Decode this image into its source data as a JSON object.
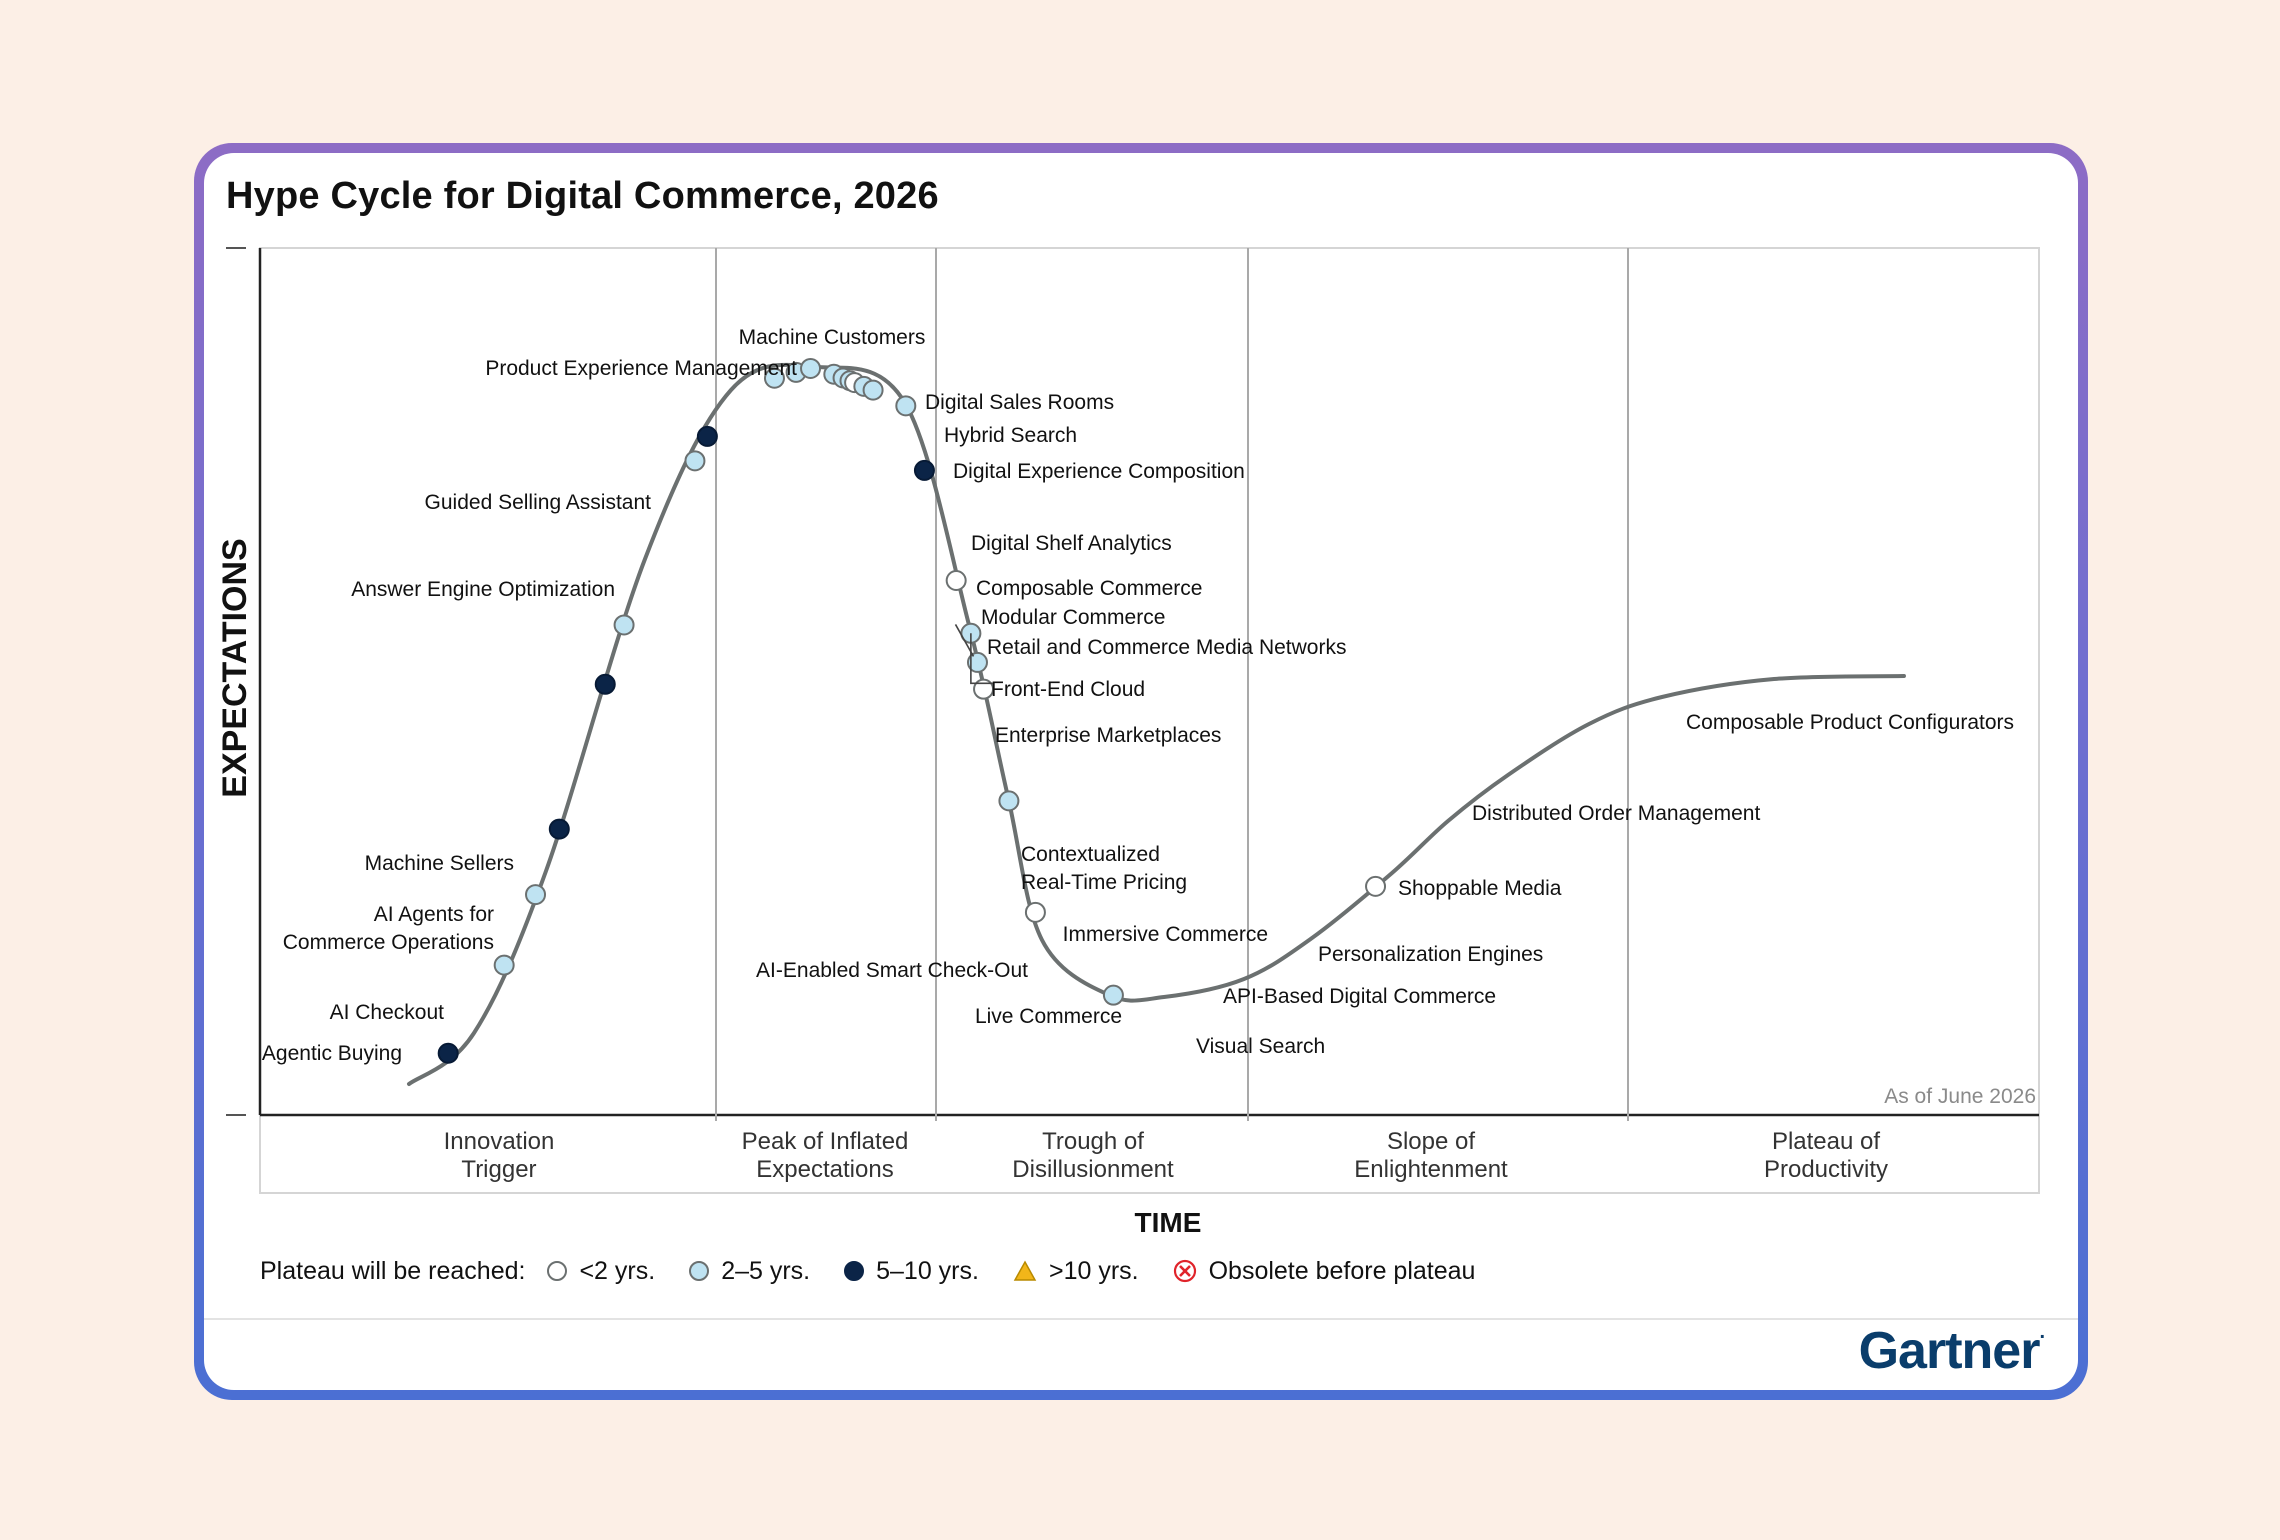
{
  "title": "Hype Cycle for Digital Commerce, 2026",
  "chart_data": {
    "type": "hype-cycle",
    "title": "Hype Cycle for Digital Commerce, 2026",
    "xlabel": "TIME",
    "ylabel": "EXPECTATIONS",
    "as_of": "As of June 2026",
    "phases": [
      "Innovation Trigger",
      "Peak of Inflated Expectations",
      "Trough of Disillusionment",
      "Slope of Enlightenment",
      "Plateau of Productivity"
    ],
    "colors": {
      "lt2": "#ffffff",
      "2to5": "#bfe3f2",
      "5to10": "#0b2447",
      "gt10": "#f2b619",
      "obsolete": "#e0242b",
      "curve": "#6b7070",
      "grid": "#a9a9a9"
    },
    "points": [
      {
        "name": "Agentic Buying",
        "t": 0.02,
        "cat": "5to10"
      },
      {
        "name": "AI Checkout",
        "t": 0.063,
        "cat": "2to5"
      },
      {
        "name": "AI Agents for Commerce Operations",
        "t": 0.094,
        "cat": "2to5"
      },
      {
        "name": "Machine Sellers",
        "t": 0.122,
        "cat": "5to10"
      },
      {
        "name": "Answer Engine Optimization",
        "t": 0.183,
        "cat": "5to10"
      },
      {
        "name": "Guided Selling Assistant",
        "t": 0.208,
        "cat": "2to5"
      },
      {
        "name": "Product Experience Management",
        "t": 0.28,
        "cat": "2to5"
      },
      {
        "name": "Machine Customers",
        "t": 0.291,
        "cat": "5to10"
      },
      {
        "name": "Digital Sales Rooms",
        "t": 0.33,
        "cat": "2to5"
      },
      {
        "name": "Hybrid Search",
        "t": 0.339,
        "cat": "2to5"
      },
      {
        "name": "Digital Experience Composition",
        "t": 0.345,
        "cat": "2to5"
      },
      {
        "name": "Digital Shelf Analytics",
        "t": 0.355,
        "cat": "2to5"
      },
      {
        "name": "Composable Commerce",
        "t": 0.359,
        "cat": "2to5"
      },
      {
        "name": "Modular Commerce",
        "t": 0.362,
        "cat": "2to5"
      },
      {
        "name": "Retail and Commerce Media Networks",
        "t": 0.364,
        "cat": "lt2"
      },
      {
        "name": "Front-End Cloud",
        "t": 0.368,
        "cat": "2to5"
      },
      {
        "name": "Enterprise Marketplaces",
        "t": 0.372,
        "cat": "2to5"
      },
      {
        "name": "Contextualized Real-Time Pricing",
        "t": 0.387,
        "cat": "2to5"
      },
      {
        "name": "AI-Enabled Smart Check-Out",
        "t": 0.414,
        "cat": "5to10"
      },
      {
        "name": "Live Commerce",
        "t": 0.46,
        "cat": "lt2"
      },
      {
        "name": "Visual Search",
        "t": 0.482,
        "cat": "2to5"
      },
      {
        "name": "Immersive Commerce",
        "t": 0.494,
        "cat": "2to5"
      },
      {
        "name": "API-Based Digital Commerce",
        "t": 0.505,
        "cat": "lt2"
      },
      {
        "name": "Personalization Engines",
        "t": 0.551,
        "cat": "2to5"
      },
      {
        "name": "Shoppable Media",
        "t": 0.597,
        "cat": "lt2"
      },
      {
        "name": "Distributed Order Management",
        "t": 0.645,
        "cat": "2to5"
      },
      {
        "name": "Composable Product Configurators",
        "t": 0.763,
        "cat": "lt2"
      }
    ]
  },
  "legend": {
    "label": "Plateau will be reached:",
    "items": [
      {
        "label": "<2 yrs.",
        "cat": "lt2"
      },
      {
        "label": "2–5 yrs.",
        "cat": "2to5"
      },
      {
        "label": "5–10 yrs.",
        "cat": "5to10"
      },
      {
        "label": ">10 yrs.",
        "cat": "gt10"
      },
      {
        "label": "Obsolete before plateau",
        "cat": "obsolete"
      }
    ]
  },
  "brand": "Gartner"
}
